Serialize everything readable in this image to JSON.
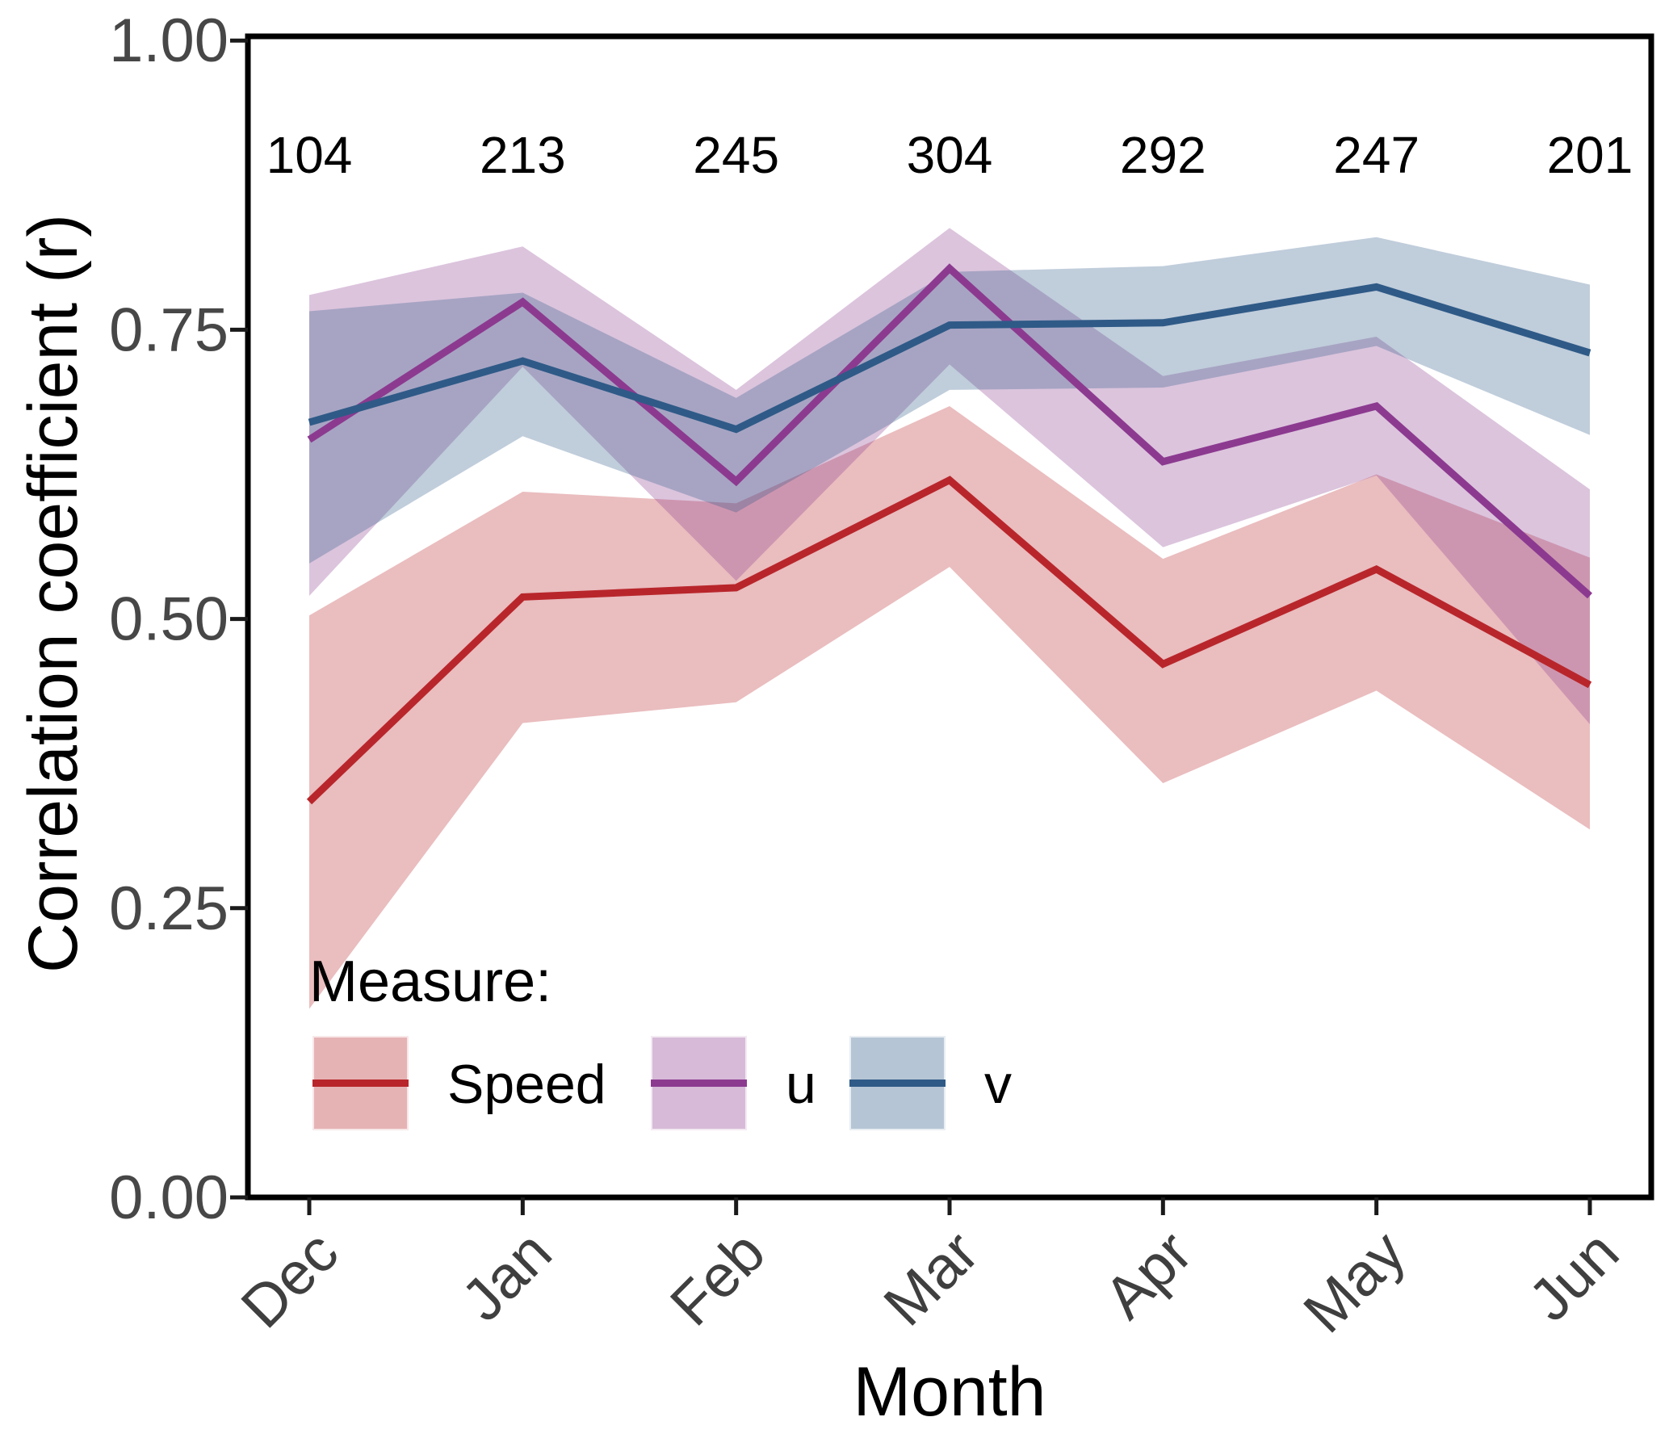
{
  "chart_data": {
    "type": "line",
    "title": "",
    "xlabel": "Month",
    "ylabel": "Correlation coefficient (r)",
    "categories": [
      "Dec",
      "Jan",
      "Feb",
      "Mar",
      "Apr",
      "May",
      "Jun"
    ],
    "counts_per_month": [
      104,
      213,
      245,
      304,
      292,
      247,
      201
    ],
    "y_ticks": [
      "0.00",
      "0.25",
      "0.50",
      "0.75",
      "1.00"
    ],
    "ylim": [
      0.0,
      1.0
    ],
    "grid": false,
    "band_opacity": 0.3,
    "legend": {
      "title": "Measure:",
      "position": "bottom-left-inside"
    },
    "series": [
      {
        "name": "Speed",
        "color": "#b8262b",
        "values": [
          0.342,
          0.519,
          0.527,
          0.62,
          0.461,
          0.543,
          0.443
        ],
        "lower": [
          0.163,
          0.41,
          0.428,
          0.545,
          0.358,
          0.438,
          0.318
        ],
        "upper": [
          0.503,
          0.61,
          0.6,
          0.684,
          0.552,
          0.625,
          0.553
        ]
      },
      {
        "name": "u",
        "color": "#8c3a90",
        "values": [
          0.655,
          0.774,
          0.619,
          0.803,
          0.636,
          0.684,
          0.52
        ],
        "lower": [
          0.52,
          0.718,
          0.533,
          0.72,
          0.562,
          0.624,
          0.409
        ],
        "upper": [
          0.78,
          0.822,
          0.698,
          0.838,
          0.71,
          0.744,
          0.612
        ]
      },
      {
        "name": "v",
        "color": "#2f5a87",
        "values": [
          0.67,
          0.723,
          0.664,
          0.754,
          0.756,
          0.787,
          0.73
        ],
        "lower": [
          0.548,
          0.658,
          0.592,
          0.698,
          0.7,
          0.736,
          0.659
        ],
        "upper": [
          0.766,
          0.782,
          0.691,
          0.8,
          0.805,
          0.83,
          0.789
        ]
      }
    ]
  }
}
